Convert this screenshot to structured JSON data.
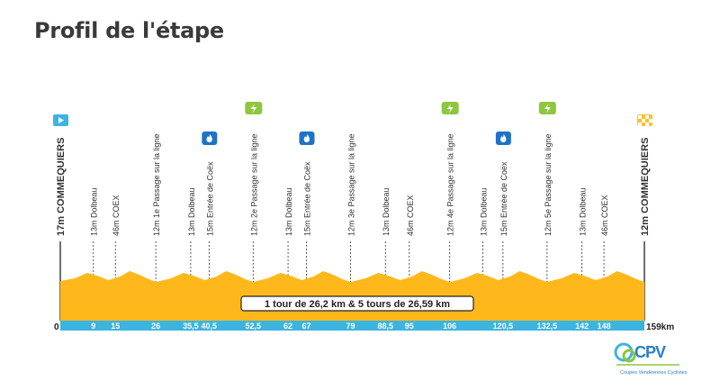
{
  "page": {
    "title": "Profil de l'étape"
  },
  "colors": {
    "profile_fill": "#ffb81c",
    "axis_bar": "#3cb4e0",
    "start_badge": "#3cb4e0",
    "sprint_badge": "#8dc63f",
    "climb_badge": "#1f73c6",
    "finish_badge": "#fbc02d",
    "label_text": "#333333",
    "axis_text": "#ffffff"
  },
  "chart_data": {
    "type": "area",
    "title": "",
    "xlabel": "",
    "ylabel": "",
    "x_unit": "km",
    "xlim": [
      0,
      159
    ],
    "total_label": "159km",
    "start_label": "0",
    "banner": "1 tour de 26,2 km &  5 tours de 26,59 km",
    "grid": false,
    "points": [
      {
        "km": 0,
        "km_label": "",
        "label": "17m COMMEQUIERS",
        "bold": true,
        "icon": "start-flag-icon"
      },
      {
        "km": 9,
        "km_label": "9",
        "label": "13m Dolbeau"
      },
      {
        "km": 15,
        "km_label": "15",
        "label": "46m COEX"
      },
      {
        "km": 26,
        "km_label": "26",
        "label": "12m 1e Passage sur la ligne"
      },
      {
        "km": 35.5,
        "km_label": "35,5",
        "label": "13m Dolbeau"
      },
      {
        "km": 40.5,
        "km_label": "40,5",
        "label": "15m Entrée de Coëx",
        "icon": "climb-icon"
      },
      {
        "km": 52.5,
        "km_label": "52,5",
        "label": "12m 2e Passage sur la ligne",
        "icon": "sprint-icon"
      },
      {
        "km": 62,
        "km_label": "62",
        "label": "13m Dolbeau"
      },
      {
        "km": 67,
        "km_label": "67",
        "label": "15m Entrée de Coëx",
        "icon": "climb-icon"
      },
      {
        "km": 79,
        "km_label": "79",
        "label": "12m 3e Passage sur la ligne"
      },
      {
        "km": 88.5,
        "km_label": "88,5",
        "label": "13m Dolbeau"
      },
      {
        "km": 95,
        "km_label": "95",
        "label": "46m COEX"
      },
      {
        "km": 106,
        "km_label": "106",
        "label": "12m 4e Passage sur la ligne",
        "icon": "sprint-icon"
      },
      {
        "km": 115,
        "km_label": "",
        "label": "13m Dolbeau"
      },
      {
        "km": 120.5,
        "km_label": "120,5",
        "label": "15m Entrée de Coëx",
        "icon": "climb-icon"
      },
      {
        "km": 132.5,
        "km_label": "132,5",
        "label": "12m 5e Passage sur la ligne",
        "icon": "sprint-icon"
      },
      {
        "km": 142,
        "km_label": "142",
        "label": "13m Dolbeau"
      },
      {
        "km": 148,
        "km_label": "148",
        "label": "46m COEX"
      },
      {
        "km": 159,
        "km_label": "",
        "label": "12m COMMEQUIERS",
        "bold": true,
        "icon": "finish-flag-icon"
      }
    ]
  },
  "logo": {
    "mark": "COCPV",
    "tagline": "Coupes Vendéennes Cyclistes"
  }
}
